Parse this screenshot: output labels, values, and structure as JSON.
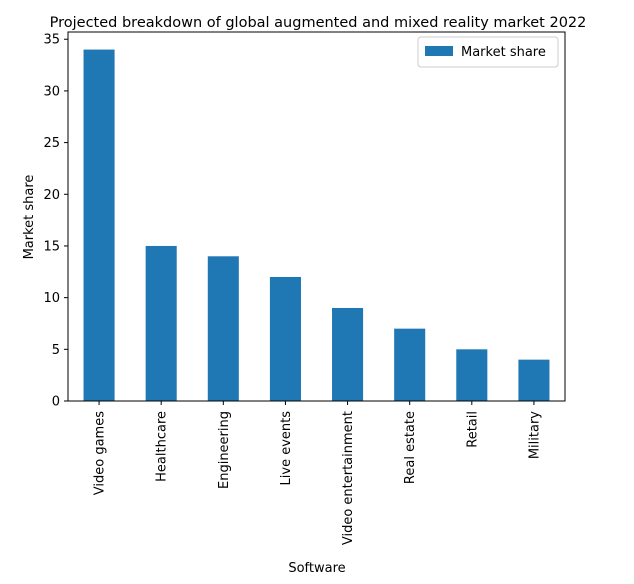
{
  "chart_data": {
    "type": "bar",
    "title": "Projected breakdown of global augmented and mixed reality market 2022",
    "xlabel": "Software",
    "ylabel": "Market share",
    "categories": [
      "Video games",
      "Healthcare",
      "Engineering",
      "Live events",
      "Video entertainment",
      "Real estate",
      "Retail",
      "Military"
    ],
    "series": [
      {
        "name": "Market share",
        "values": [
          34,
          15,
          14,
          12,
          9,
          7,
          5,
          4
        ],
        "color": "#1f77b4"
      }
    ],
    "ylim": [
      0,
      35.7
    ],
    "yticks": [
      0,
      5,
      10,
      15,
      20,
      25,
      30,
      35
    ],
    "grid": false,
    "legend_position": "top-right"
  }
}
